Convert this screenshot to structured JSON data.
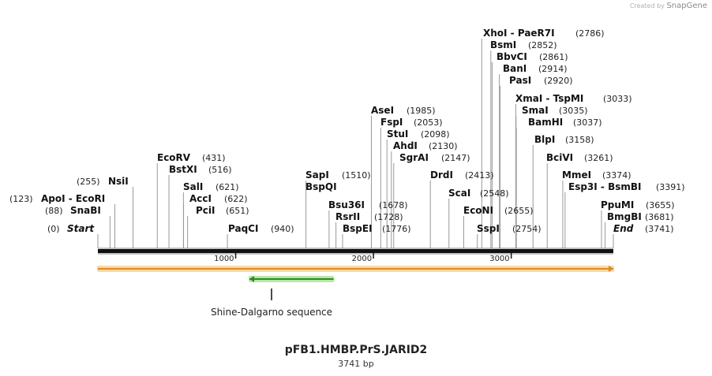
{
  "credit": {
    "prefix": "Created by",
    "brand": "SnapGene"
  },
  "plasmid": {
    "name": "pFB1.HMBP.PrS.JARID2",
    "size_label": "3741 bp",
    "length": 3741
  },
  "colors": {
    "backbone": "#111111",
    "feature_orange": "#e08a1e",
    "feature_glow": "#f7d9a6",
    "feature_green": "#2e8b20",
    "green_glow": "#b9e6a8",
    "label": "#111111"
  },
  "ticks": [
    {
      "pos": 1000,
      "label": "1000"
    },
    {
      "pos": 2000,
      "label": "2000"
    },
    {
      "pos": 3000,
      "label": "3000"
    }
  ],
  "sites": [
    {
      "name": "Start",
      "pos_label": "(0)",
      "pos": 0,
      "special": true
    },
    {
      "name": "SnaBI",
      "pos_label": "(88)",
      "pos": 88
    },
    {
      "name": "ApoI  - EcoRI",
      "pos_label": "(123)",
      "pos": 123
    },
    {
      "name": "NsiI",
      "pos_label": "(255)",
      "pos": 255
    },
    {
      "name": "EcoRV",
      "pos_label": "(431)",
      "pos": 431
    },
    {
      "name": "BstXI",
      "pos_label": "(516)",
      "pos": 516
    },
    {
      "name": "SalI",
      "pos_label": "(621)",
      "pos": 621
    },
    {
      "name": "AccI",
      "pos_label": "(622)",
      "pos": 622
    },
    {
      "name": "PciI",
      "pos_label": "(651)",
      "pos": 651
    },
    {
      "name": "PaqCI",
      "pos_label": "(940)",
      "pos": 940
    },
    {
      "name": "SapI",
      "pos_label": "(1510)",
      "pos": 1510
    },
    {
      "name": "BspQI",
      "pos_label": "",
      "pos": 1510
    },
    {
      "name": "Bsu36I",
      "pos_label": "(1678)",
      "pos": 1678
    },
    {
      "name": "RsrII",
      "pos_label": "(1728)",
      "pos": 1728
    },
    {
      "name": "BspEI",
      "pos_label": "(1776)",
      "pos": 1776
    },
    {
      "name": "AseI",
      "pos_label": "(1985)",
      "pos": 1985
    },
    {
      "name": "FspI",
      "pos_label": "(2053)",
      "pos": 2053
    },
    {
      "name": "StuI",
      "pos_label": "(2098)",
      "pos": 2098
    },
    {
      "name": "AhdI",
      "pos_label": "(2130)",
      "pos": 2130
    },
    {
      "name": "SgrAI",
      "pos_label": "(2147)",
      "pos": 2147
    },
    {
      "name": "DrdI",
      "pos_label": "(2413)",
      "pos": 2413
    },
    {
      "name": "ScaI",
      "pos_label": "(2548)",
      "pos": 2548
    },
    {
      "name": "EcoNI",
      "pos_label": "(2655)",
      "pos": 2655
    },
    {
      "name": "SspI",
      "pos_label": "(2754)",
      "pos": 2754
    },
    {
      "name": "XhoI  - PaeR7I",
      "pos_label": "(2786)",
      "pos": 2786
    },
    {
      "name": "BsmI",
      "pos_label": "(2852)",
      "pos": 2852
    },
    {
      "name": "BbvCI",
      "pos_label": "(2861)",
      "pos": 2861
    },
    {
      "name": "BanI",
      "pos_label": "(2914)",
      "pos": 2914
    },
    {
      "name": "PasI",
      "pos_label": "(2920)",
      "pos": 2920
    },
    {
      "name": "XmaI  - TspMI",
      "pos_label": "(3033)",
      "pos": 3033
    },
    {
      "name": "SmaI",
      "pos_label": "(3035)",
      "pos": 3035
    },
    {
      "name": "BamHI",
      "pos_label": "(3037)",
      "pos": 3037
    },
    {
      "name": "BlpI",
      "pos_label": "(3158)",
      "pos": 3158
    },
    {
      "name": "BciVI",
      "pos_label": "(3261)",
      "pos": 3261
    },
    {
      "name": "MmeI",
      "pos_label": "(3374)",
      "pos": 3374
    },
    {
      "name": "Esp3I  - BsmBI",
      "pos_label": "(3391)",
      "pos": 3391
    },
    {
      "name": "PpuMI",
      "pos_label": "(3655)",
      "pos": 3655
    },
    {
      "name": "BmgBI",
      "pos_label": "(3681)",
      "pos": 3681
    },
    {
      "name": "End",
      "pos_label": "(3741)",
      "pos": 3741,
      "special": true
    }
  ],
  "features": [
    {
      "name": "backbone-feature",
      "start": 0,
      "end": 3741,
      "direction": "forward",
      "color_key": "feature_orange"
    },
    {
      "name": "Shine-Dalgarno sequence",
      "start": 1100,
      "end": 1710,
      "direction": "reverse",
      "color_key": "feature_green"
    }
  ],
  "annotations": [
    {
      "text": "Shine-Dalgarno sequence",
      "pos": 1260
    }
  ]
}
